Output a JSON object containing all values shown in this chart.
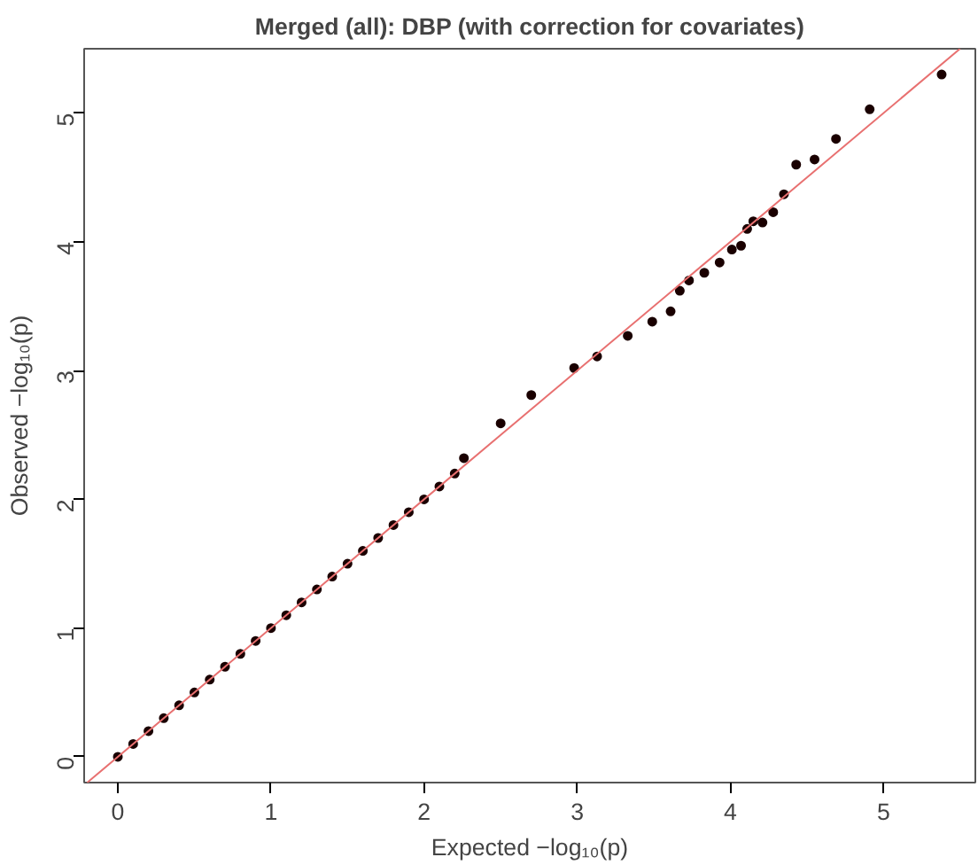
{
  "chart_data": {
    "type": "scatter",
    "title": "Merged (all): DBP (with correction for covariates)",
    "xlabel": "Expected −log₁₀(p)",
    "ylabel": "Observed −log₁₀(p)",
    "xlim": [
      -0.22,
      5.6
    ],
    "ylim": [
      -0.2,
      5.5
    ],
    "xticks": [
      0,
      1,
      2,
      3,
      4,
      5
    ],
    "yticks": [
      0,
      1,
      2,
      3,
      4,
      5
    ],
    "grid": false,
    "marker": "circle",
    "series": [
      {
        "color": "#1a0000",
        "x": [
          0,
          0.1,
          0.2,
          0.3,
          0.4,
          0.5,
          0.6,
          0.7,
          0.8,
          0.9,
          1.0,
          1.1,
          1.2,
          1.3,
          1.4,
          1.5,
          1.6,
          1.7,
          1.8,
          1.9,
          2.0,
          2.1,
          2.2,
          2.26,
          2.5,
          2.7,
          2.98,
          3.13,
          3.33,
          3.49,
          3.61,
          3.67,
          3.73,
          3.83,
          3.93,
          4.01,
          4.07,
          4.11,
          4.15,
          4.21,
          4.28,
          4.35,
          4.43,
          4.55,
          4.69,
          4.91,
          5.38
        ],
        "values": [
          0,
          0.1,
          0.2,
          0.3,
          0.4,
          0.5,
          0.6,
          0.7,
          0.8,
          0.9,
          1.0,
          1.1,
          1.2,
          1.3,
          1.4,
          1.5,
          1.6,
          1.7,
          1.8,
          1.9,
          2.0,
          2.1,
          2.2,
          2.32,
          2.59,
          2.81,
          3.02,
          3.11,
          3.27,
          3.38,
          3.46,
          3.62,
          3.7,
          3.76,
          3.84,
          3.94,
          3.97,
          4.1,
          4.16,
          4.15,
          4.23,
          4.37,
          4.6,
          4.64,
          4.8,
          5.03,
          5.3
        ]
      },
      {
        "type": "line",
        "marker": "none",
        "color": "#e87070",
        "x": [
          -0.2,
          5.5
        ],
        "values": [
          -0.2,
          5.5
        ]
      }
    ]
  }
}
